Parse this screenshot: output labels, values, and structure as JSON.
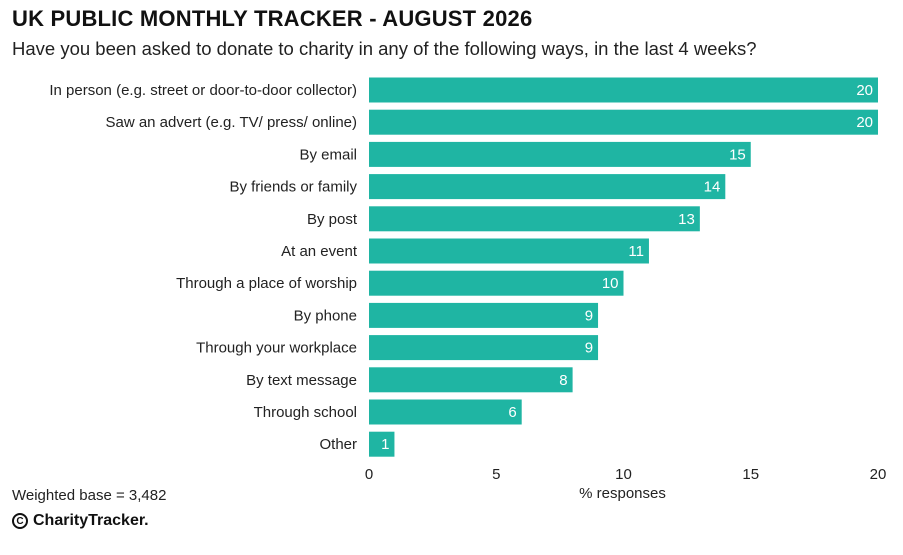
{
  "header": {
    "title": "UK PUBLIC MONTHLY TRACKER - AUGUST 2026",
    "subtitle": "Have you been asked to donate to charity in any of the following ways, in the last 4 weeks?"
  },
  "footer": {
    "base": "Weighted base = 3,482",
    "brand": "CharityTracker.",
    "brand_icon": "copyright-icon"
  },
  "chart_data": {
    "type": "bar",
    "orientation": "horizontal",
    "categories": [
      "In person (e.g. street or door-to-door collector)",
      "Saw an advert (e.g. TV/ press/ online)",
      "By email",
      "By friends or family",
      "By post",
      "At an event",
      "Through a place of worship",
      "By phone",
      "Through your workplace",
      "By text message",
      "Through school",
      "Other"
    ],
    "values": [
      20,
      20,
      15,
      14,
      13,
      11,
      10,
      9,
      9,
      8,
      6,
      1
    ],
    "xlabel": "% responses",
    "xlim": [
      0,
      20
    ],
    "xticks": [
      0,
      5,
      10,
      15,
      20
    ],
    "grid": false,
    "bar_color": "#1fb5a3",
    "label_color": "#ffffff"
  }
}
